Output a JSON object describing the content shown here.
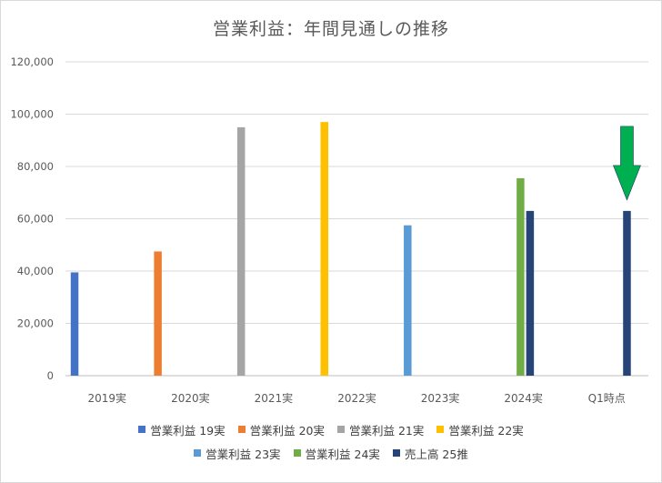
{
  "chart_title": "営業利益：年間見通しの推移",
  "chart_data": {
    "type": "bar",
    "title": "営業利益：年間見通しの推移",
    "categories": [
      "2019実",
      "2020実",
      "2021実",
      "2022実",
      "2023実",
      "2024実",
      "Q1時点"
    ],
    "ylim": [
      0,
      120000
    ],
    "yticks": [
      0,
      20000,
      40000,
      60000,
      80000,
      100000,
      120000
    ],
    "ytick_labels": [
      "0",
      "20,000",
      "40,000",
      "60,000",
      "80,000",
      "100,000",
      "120,000"
    ],
    "grid": true,
    "legend_position": "bottom",
    "series": [
      {
        "name": "営業利益 19実",
        "color": "#4472c4",
        "values": [
          39500,
          0,
          0,
          0,
          0,
          0,
          0
        ]
      },
      {
        "name": "営業利益 20実",
        "color": "#ed7d31",
        "values": [
          0,
          47500,
          0,
          0,
          0,
          0,
          0
        ]
      },
      {
        "name": "営業利益 21実",
        "color": "#a5a5a5",
        "values": [
          0,
          0,
          95000,
          0,
          0,
          0,
          0
        ]
      },
      {
        "name": "営業利益 22実",
        "color": "#ffc000",
        "values": [
          0,
          0,
          0,
          97000,
          0,
          0,
          0
        ]
      },
      {
        "name": "営業利益 23実",
        "color": "#5b9bd5",
        "values": [
          0,
          0,
          0,
          0,
          57500,
          0,
          0
        ]
      },
      {
        "name": "営業利益 24実",
        "color": "#70ad47",
        "values": [
          0,
          0,
          0,
          0,
          0,
          75500,
          0
        ]
      },
      {
        "name": "売上高 25推",
        "color": "#264478",
        "values": [
          0,
          0,
          0,
          0,
          0,
          63000,
          63000
        ]
      }
    ],
    "annotations": [
      {
        "type": "arrow-down",
        "color": "#00b050",
        "category": "Q1時点",
        "points_to": 63000
      }
    ]
  }
}
